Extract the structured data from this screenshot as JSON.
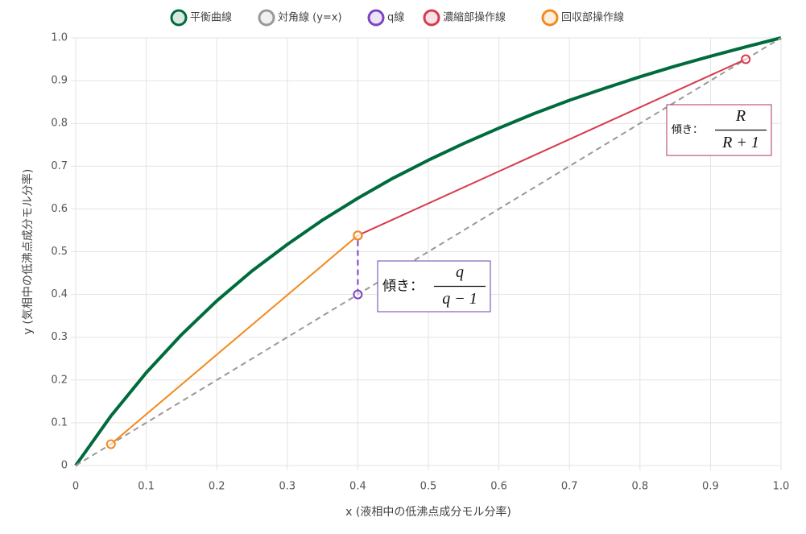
{
  "chart_data": {
    "type": "line",
    "x_label": "x (液相中の低沸点成分モル分率)",
    "y_label": "y (気相中の低沸点成分モル分率)",
    "xlim": [
      0,
      1
    ],
    "ylim": [
      0,
      1
    ],
    "xticks": [
      0,
      0.1,
      0.2,
      0.3,
      0.4,
      0.5,
      0.6,
      0.7,
      0.8,
      0.9,
      {
        "value": 1,
        "label": "1.0"
      }
    ],
    "yticks": [
      0,
      0.1,
      0.2,
      0.3,
      0.4,
      0.5,
      0.6,
      0.7,
      0.8,
      0.9,
      {
        "value": 1,
        "label": "1.0"
      }
    ],
    "grid": true,
    "legend": "top",
    "series": [
      {
        "name": "平衡曲線",
        "color": "#006b3c",
        "width": 4,
        "dashed": false,
        "markers": false,
        "x": [
          0,
          0.05,
          0.1,
          0.15,
          0.2,
          0.25,
          0.3,
          0.35,
          0.4,
          0.45,
          0.5,
          0.55,
          0.6,
          0.65,
          0.7,
          0.75,
          0.8,
          0.85,
          0.9,
          0.95,
          1
        ],
        "values": [
          0,
          0.116,
          0.217,
          0.306,
          0.385,
          0.455,
          0.517,
          0.574,
          0.625,
          0.672,
          0.714,
          0.753,
          0.789,
          0.823,
          0.854,
          0.882,
          0.909,
          0.934,
          0.957,
          0.979,
          1
        ]
      },
      {
        "name": "対角線 (y=x)",
        "color": "#999999",
        "width": 2,
        "dashed": true,
        "markers": false,
        "x": [
          0,
          1
        ],
        "values": [
          0,
          1
        ]
      },
      {
        "name": "q線",
        "color": "#7b45c0",
        "width": 2,
        "dashed": true,
        "markers": true,
        "x": [
          0.4,
          0.4
        ],
        "values": [
          0.4,
          0.538
        ]
      },
      {
        "name": "濃縮部操作線",
        "color": "#d63b4e",
        "width": 2,
        "dashed": false,
        "markers": true,
        "x": [
          0.4,
          0.95
        ],
        "values": [
          0.538,
          0.95
        ]
      },
      {
        "name": "回収部操作線",
        "color": "#f28a1e",
        "width": 2,
        "dashed": false,
        "markers": true,
        "x": [
          0.05,
          0.4
        ],
        "values": [
          0.05,
          0.538
        ]
      }
    ],
    "annotations": [
      {
        "text": "傾き：",
        "numerator": "R",
        "denominator": "R + 1",
        "color": "#b0306a"
      },
      {
        "text": "傾き：",
        "numerator": "q",
        "denominator": "q − 1",
        "color": "#6a3fb0"
      }
    ]
  }
}
